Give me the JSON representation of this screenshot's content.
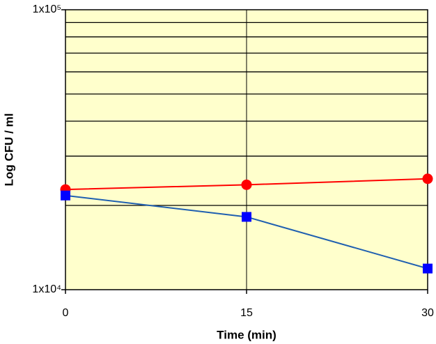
{
  "chart_data": {
    "type": "line",
    "x_label": "Time (min)",
    "y_label": "Log CFU / ml",
    "x": [
      0,
      15,
      30
    ],
    "series": [
      {
        "color": "#ff0000",
        "marker": "circle",
        "values": [
          22800,
          23700,
          24900
        ]
      },
      {
        "color": "#0000ff",
        "line_color": "#1f5fb0",
        "marker": "square",
        "values": [
          21700,
          18200,
          11900
        ]
      }
    ],
    "xlim": [
      0,
      30
    ],
    "xticks": [
      0,
      15,
      30
    ],
    "ylim": [
      10000,
      100000
    ],
    "y_scale": "log",
    "yticks": [
      {
        "value": 10000,
        "label": "1x10⁴"
      },
      {
        "value": 100000,
        "label": "1x10⁵"
      }
    ],
    "yminorticks": [
      20000,
      30000,
      40000,
      50000,
      60000,
      70000,
      80000,
      90000
    ],
    "grid": true,
    "background": "#ffffcc"
  }
}
